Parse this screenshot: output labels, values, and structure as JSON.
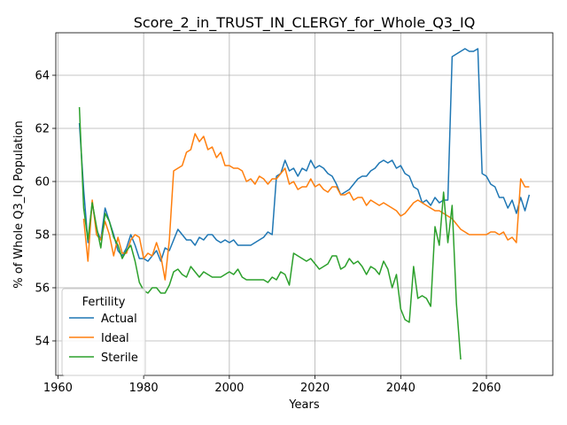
{
  "chart_data": {
    "type": "line",
    "title": "Score_2_in_TRUST_IN_CLERGY_for_Whole_Q3_IQ",
    "xlabel": "Years",
    "ylabel": "% of Whole Q3_IQ Population",
    "xlim": [
      1959.5,
      2075.5
    ],
    "ylim": [
      52.7,
      65.6
    ],
    "xticks": [
      1960,
      1980,
      2000,
      2020,
      2040,
      2060
    ],
    "yticks": [
      54,
      56,
      58,
      60,
      62,
      64
    ],
    "grid": true,
    "legend": {
      "title": "Fertility",
      "position": "bottom-left"
    },
    "colors": {
      "Actual": "#1f77b4",
      "Ideal": "#ff7f0e",
      "Sterile": "#2ca02c"
    },
    "series": [
      {
        "name": "Actual",
        "x": [
          1965,
          1966,
          1967,
          1968,
          1969,
          1970,
          1971,
          1972,
          1973,
          1974,
          1975,
          1976,
          1977,
          1978,
          1979,
          1980,
          1981,
          1982,
          1983,
          1984,
          1985,
          1986,
          1987,
          1988,
          1989,
          1990,
          1991,
          1992,
          1993,
          1994,
          1995,
          1996,
          1997,
          1998,
          1999,
          2000,
          2001,
          2002,
          2003,
          2004,
          2005,
          2006,
          2007,
          2008,
          2009,
          2010,
          2011,
          2012,
          2013,
          2014,
          2015,
          2016,
          2017,
          2018,
          2019,
          2020,
          2021,
          2022,
          2023,
          2024,
          2025,
          2026,
          2027,
          2028,
          2029,
          2030,
          2031,
          2032,
          2033,
          2034,
          2035,
          2036,
          2037,
          2038,
          2039,
          2040,
          2041,
          2042,
          2043,
          2044,
          2045,
          2046,
          2047,
          2048,
          2049,
          2050,
          2051,
          2052,
          2053,
          2054,
          2055,
          2056,
          2057,
          2058,
          2059,
          2060,
          2061,
          2062,
          2063,
          2064,
          2065,
          2066,
          2067,
          2068,
          2069,
          2070
        ],
        "values": [
          62.2,
          59.7,
          57.7,
          59.2,
          58.2,
          57.8,
          59.0,
          58.5,
          58.0,
          57.4,
          57.2,
          57.5,
          58.0,
          57.6,
          57.1,
          57.1,
          57.0,
          57.2,
          57.4,
          57.0,
          57.5,
          57.4,
          57.8,
          58.2,
          58.0,
          57.8,
          57.8,
          57.6,
          57.9,
          57.8,
          58.0,
          58.0,
          57.8,
          57.7,
          57.8,
          57.7,
          57.8,
          57.6,
          57.6,
          57.6,
          57.6,
          57.7,
          57.8,
          57.9,
          58.1,
          58.0,
          60.2,
          60.3,
          60.8,
          60.4,
          60.5,
          60.2,
          60.5,
          60.4,
          60.8,
          60.5,
          60.6,
          60.5,
          60.3,
          60.2,
          59.9,
          59.5,
          59.6,
          59.7,
          59.9,
          60.1,
          60.2,
          60.2,
          60.4,
          60.5,
          60.7,
          60.8,
          60.7,
          60.8,
          60.5,
          60.6,
          60.3,
          60.2,
          59.8,
          59.7,
          59.2,
          59.3,
          59.1,
          59.4,
          59.2,
          59.3,
          59.3,
          64.7,
          64.8,
          64.9,
          65.0,
          64.9,
          64.9,
          65.0,
          60.3,
          60.2,
          59.9,
          59.8,
          59.4,
          59.4,
          59.0,
          59.3,
          58.8,
          59.4,
          58.9,
          59.5
        ]
      },
      {
        "name": "Ideal",
        "x": [
          1965,
          1966,
          1967,
          1968,
          1969,
          1970,
          1971,
          1972,
          1973,
          1974,
          1975,
          1976,
          1977,
          1978,
          1979,
          1980,
          1981,
          1982,
          1983,
          1984,
          1985,
          1986,
          1987,
          1988,
          1989,
          1990,
          1991,
          1992,
          1993,
          1994,
          1995,
          1996,
          1997,
          1998,
          1999,
          2000,
          2001,
          2002,
          2003,
          2004,
          2005,
          2006,
          2007,
          2008,
          2009,
          2010,
          2011,
          2012,
          2013,
          2014,
          2015,
          2016,
          2017,
          2018,
          2019,
          2020,
          2021,
          2022,
          2023,
          2024,
          2025,
          2026,
          2027,
          2028,
          2029,
          2030,
          2031,
          2032,
          2033,
          2034,
          2035,
          2036,
          2037,
          2038,
          2039,
          2040,
          2041,
          2042,
          2043,
          2044,
          2045,
          2046,
          2047,
          2048,
          2049,
          2050,
          2051,
          2052,
          2053,
          2054,
          2055,
          2056,
          2057,
          2058,
          2059,
          2060,
          2061,
          2062,
          2063,
          2064,
          2065,
          2066,
          2067,
          2068,
          2069,
          2070
        ],
        "values": [
          null,
          58.6,
          57.0,
          59.3,
          58.0,
          57.8,
          58.5,
          58.0,
          57.2,
          57.9,
          57.3,
          57.3,
          57.8,
          58.0,
          57.9,
          57.1,
          57.3,
          57.2,
          57.7,
          57.2,
          56.3,
          57.8,
          60.4,
          60.5,
          60.6,
          61.1,
          61.2,
          61.8,
          61.5,
          61.7,
          61.2,
          61.3,
          60.9,
          61.1,
          60.6,
          60.6,
          60.5,
          60.5,
          60.4,
          60.0,
          60.1,
          59.9,
          60.2,
          60.1,
          59.9,
          60.1,
          60.1,
          60.3,
          60.5,
          59.9,
          60.0,
          59.7,
          59.8,
          59.8,
          60.1,
          59.8,
          59.9,
          59.7,
          59.6,
          59.8,
          59.8,
          59.5,
          59.5,
          59.6,
          59.3,
          59.4,
          59.4,
          59.1,
          59.3,
          59.2,
          59.1,
          59.2,
          59.1,
          59.0,
          58.9,
          58.7,
          58.8,
          59.0,
          59.2,
          59.3,
          59.2,
          59.1,
          59.0,
          58.9,
          58.9,
          58.8,
          58.7,
          58.6,
          58.4,
          58.2,
          58.1,
          58.0,
          58.0,
          58.0,
          58.0,
          58.0,
          58.1,
          58.1,
          58.0,
          58.1,
          57.8,
          57.9,
          57.7,
          60.1,
          59.8,
          59.8
        ]
      },
      {
        "name": "Sterile",
        "x": [
          1965,
          1966,
          1967,
          1968,
          1969,
          1970,
          1971,
          1972,
          1973,
          1974,
          1975,
          1976,
          1977,
          1978,
          1979,
          1980,
          1981,
          1982,
          1983,
          1984,
          1985,
          1986,
          1987,
          1988,
          1989,
          1990,
          1991,
          1992,
          1993,
          1994,
          1995,
          1996,
          1997,
          1998,
          1999,
          2000,
          2001,
          2002,
          2003,
          2004,
          2005,
          2006,
          2007,
          2008,
          2009,
          2010,
          2011,
          2012,
          2013,
          2014,
          2015,
          2016,
          2017,
          2018,
          2019,
          2020,
          2021,
          2022,
          2023,
          2024,
          2025,
          2026,
          2027,
          2028,
          2029,
          2030,
          2031,
          2032,
          2033,
          2034,
          2035,
          2036,
          2037,
          2038,
          2039,
          2040,
          2041,
          2042,
          2043,
          2044,
          2045,
          2046,
          2047,
          2048,
          2049,
          2050,
          2051,
          2052,
          2053,
          2054
        ],
        "values": [
          62.8,
          59.0,
          57.8,
          59.2,
          58.3,
          57.5,
          58.8,
          58.5,
          57.9,
          57.6,
          57.1,
          57.4,
          57.6,
          57.0,
          56.2,
          55.9,
          55.8,
          56.0,
          56.0,
          55.8,
          55.8,
          56.1,
          56.6,
          56.7,
          56.5,
          56.4,
          56.8,
          56.6,
          56.4,
          56.6,
          56.5,
          56.4,
          56.4,
          56.4,
          56.5,
          56.6,
          56.5,
          56.7,
          56.4,
          56.3,
          56.3,
          56.3,
          56.3,
          56.3,
          56.2,
          56.4,
          56.3,
          56.6,
          56.5,
          56.1,
          57.3,
          57.2,
          57.1,
          57.0,
          57.1,
          56.9,
          56.7,
          56.8,
          56.9,
          57.2,
          57.2,
          56.7,
          56.8,
          57.1,
          56.9,
          57.0,
          56.8,
          56.5,
          56.8,
          56.7,
          56.5,
          57.0,
          56.7,
          56.0,
          56.5,
          55.2,
          54.8,
          54.7,
          56.8,
          55.6,
          55.7,
          55.6,
          55.3,
          58.3,
          57.6,
          59.6,
          57.7,
          59.1,
          55.4,
          53.3
        ]
      }
    ]
  }
}
